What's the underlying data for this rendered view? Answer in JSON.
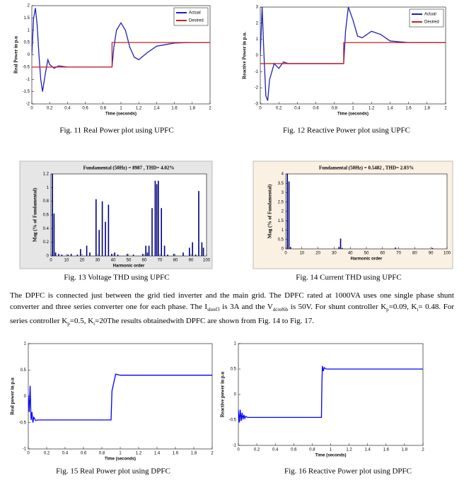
{
  "chart_data": [
    {
      "type": "line",
      "caption": "Fig. 11 Real Power plot using UPFC",
      "xlabel": "Time (seconds)",
      "ylabel": "Real Power in p.u",
      "xlim": [
        0,
        2
      ],
      "xticks": [
        0,
        0.2,
        0.4,
        0.6,
        0.8,
        1,
        1.2,
        1.4,
        1.6,
        1.8,
        2
      ],
      "ylim": [
        -2,
        2
      ],
      "yticks": [
        -2,
        -1.5,
        -1,
        -0.5,
        0,
        0.5,
        1,
        1.5,
        2
      ],
      "legend": "upper right",
      "series": [
        {
          "name": "Actual",
          "color": "#1f1fb4",
          "x": [
            0,
            0.02,
            0.04,
            0.06,
            0.08,
            0.1,
            0.12,
            0.15,
            0.18,
            0.2,
            0.25,
            0.3,
            0.4,
            0.5,
            0.6,
            0.7,
            0.8,
            0.9,
            0.92,
            0.95,
            1.0,
            1.05,
            1.1,
            1.15,
            1.2,
            1.3,
            1.4,
            1.6,
            1.8,
            2
          ],
          "values": [
            0,
            1.5,
            1.9,
            1.2,
            0,
            -1.0,
            -1.5,
            -0.8,
            -0.2,
            -0.4,
            -0.55,
            -0.45,
            -0.5,
            -0.5,
            -0.5,
            -0.5,
            -0.5,
            -0.5,
            0.3,
            1.0,
            1.3,
            1.0,
            0.3,
            -0.1,
            -0.2,
            0.1,
            0.35,
            0.48,
            0.5,
            0.5
          ]
        },
        {
          "name": "Desired",
          "color": "#cc2020",
          "x": [
            0,
            0.9,
            0.9,
            2
          ],
          "values": [
            -0.5,
            -0.5,
            0.5,
            0.5
          ]
        }
      ]
    },
    {
      "type": "line",
      "caption": "Fig. 12 Reactive Power plot using UPFC",
      "xlabel": "Time (seconds)",
      "ylabel": "Reactive Power in p.u.",
      "xlim": [
        0,
        2
      ],
      "xticks": [
        0,
        0.2,
        0.4,
        0.6,
        0.8,
        1,
        1.2,
        1.4,
        1.6,
        1.8,
        2
      ],
      "ylim": [
        -3,
        3
      ],
      "yticks": [
        -3,
        -2,
        -1,
        0,
        1,
        2,
        3
      ],
      "legend": "upper right",
      "series": [
        {
          "name": "Actual",
          "color": "#1f1fb4",
          "x": [
            0,
            0.02,
            0.04,
            0.06,
            0.08,
            0.1,
            0.15,
            0.2,
            0.25,
            0.3,
            0.4,
            0.6,
            0.8,
            0.9,
            0.92,
            0.95,
            1.0,
            1.05,
            1.1,
            1.2,
            1.3,
            1.4,
            1.6,
            1.8,
            2
          ],
          "values": [
            0,
            3,
            0,
            -2.5,
            -2.8,
            -1.5,
            -0.5,
            -0.8,
            -0.4,
            -0.5,
            -0.5,
            -0.5,
            -0.5,
            -0.5,
            1.5,
            3,
            2.2,
            1.2,
            1.1,
            1.5,
            1.3,
            0.9,
            0.8,
            0.8,
            0.8
          ]
        },
        {
          "name": "Desired",
          "color": "#cc2020",
          "x": [
            0,
            0.9,
            0.9,
            2
          ],
          "values": [
            -0.5,
            -0.5,
            0.8,
            0.8
          ]
        }
      ]
    },
    {
      "type": "bar",
      "caption": "Fig. 13 Voltage THD using UPFC",
      "title": "Fundamental (50Hz) = 8987 , THD= 4.02%",
      "xlabel": "Harmonic order",
      "ylabel": "Mag (% of Fundamental)",
      "background": "#e6e6e6",
      "color": "#000080",
      "xlim": [
        0,
        100
      ],
      "xticks": [
        0,
        10,
        20,
        30,
        40,
        50,
        60,
        70,
        80,
        90,
        100
      ],
      "ylim": [
        0,
        1.2
      ],
      "yticks": [
        0,
        0.2,
        0.4,
        0.6,
        0.8,
        1,
        1.2
      ],
      "x": [
        1,
        2,
        3,
        5,
        7,
        11,
        13,
        17,
        19,
        23,
        25,
        29,
        31,
        33,
        35,
        37,
        39,
        41,
        43,
        49,
        53,
        59,
        61,
        62,
        63,
        65,
        67,
        68,
        69,
        71,
        73,
        75,
        79,
        85,
        89,
        91,
        93,
        95,
        97,
        98
      ],
      "values": [
        1.25,
        0.62,
        0.05,
        0.03,
        0.02,
        0.02,
        0.03,
        0.02,
        0.1,
        0.15,
        0.05,
        0.83,
        0.38,
        0.8,
        0.5,
        0.75,
        0.03,
        0.05,
        0.02,
        0.03,
        0.02,
        0.03,
        0.15,
        0.05,
        0.15,
        0.7,
        1.1,
        1.05,
        1.1,
        0.7,
        0.15,
        0.02,
        0.03,
        0.05,
        0.12,
        0.2,
        0.02,
        0.95,
        0.2,
        0.12
      ]
    },
    {
      "type": "bar",
      "caption": "Fig. 14 Current THD using UPFC",
      "title": "Fundamental (50Hz) = 0.5482 , THD= 2.03%",
      "xlabel": "Harmonic order",
      "ylabel": "Mag (% of Fundamental)",
      "background": "#fbf1e3",
      "color": "#000080",
      "xlim": [
        0,
        100
      ],
      "xticks": [
        0,
        10,
        20,
        30,
        40,
        50,
        60,
        70,
        80,
        90,
        100
      ],
      "ylim": [
        0,
        4
      ],
      "yticks": [
        0,
        0.5,
        1,
        1.5,
        2,
        2.5,
        3,
        3.5,
        4
      ],
      "x": [
        1,
        2,
        3,
        33,
        34,
        35,
        68,
        91
      ],
      "values": [
        4.2,
        3.6,
        0.1,
        0.1,
        0.55,
        0.05,
        0.07,
        0.05
      ]
    },
    {
      "type": "line",
      "caption": "Fig. 15 Real Power plot using DPFC",
      "xlabel": "Time (seconds)",
      "ylabel": "Real power in p.u",
      "xlim": [
        0,
        2
      ],
      "xticks": [
        0,
        0.2,
        0.4,
        0.6,
        0.8,
        1,
        1.2,
        1.4,
        1.6,
        1.8,
        2
      ],
      "ylim": [
        -1,
        1
      ],
      "yticks": [
        -1,
        -0.5,
        0,
        0.5,
        1
      ],
      "series": [
        {
          "name": "Real power",
          "color": "#0000ff",
          "x": [
            0,
            0.01,
            0.02,
            0.03,
            0.04,
            0.05,
            0.06,
            0.08,
            0.1,
            0.3,
            0.6,
            0.9,
            0.91,
            0.95,
            1.0,
            1.5,
            2
          ],
          "values": [
            0.02,
            -0.3,
            0.2,
            -0.45,
            -0.3,
            -0.5,
            -0.4,
            -0.46,
            -0.45,
            -0.45,
            -0.45,
            -0.45,
            0.1,
            0.42,
            0.4,
            0.4,
            0.4
          ]
        }
      ]
    },
    {
      "type": "line",
      "caption": "Fig. 16 Reactive Power plot using DPFC",
      "xlabel": "Time (seconds)",
      "ylabel": "Reactive power in p.u",
      "xlim": [
        0,
        2
      ],
      "xticks": [
        0,
        0.2,
        0.4,
        0.6,
        0.8,
        1,
        1.2,
        1.4,
        1.6,
        1.8,
        2
      ],
      "ylim": [
        -1,
        1
      ],
      "yticks": [
        -1,
        -0.5,
        0,
        0.5,
        1
      ],
      "series": [
        {
          "name": "Reactive power",
          "color": "#0000ff",
          "x": [
            0,
            0.01,
            0.02,
            0.03,
            0.04,
            0.05,
            0.06,
            0.07,
            0.08,
            0.1,
            0.3,
            0.6,
            0.9,
            0.905,
            0.91,
            0.92,
            0.93,
            0.95,
            1.0,
            1.5,
            2
          ],
          "values": [
            -0.3,
            -0.55,
            -0.3,
            -0.52,
            -0.36,
            -0.49,
            -0.4,
            -0.47,
            -0.43,
            -0.45,
            -0.45,
            -0.45,
            -0.45,
            0.2,
            0.56,
            0.46,
            0.53,
            0.5,
            0.5,
            0.5,
            0.5
          ]
        }
      ]
    }
  ],
  "paragraph": [
    "The DPFC is connected just between the grid tied inverter and the main grid. The DPFC rated at 1000VA uses one single phase shunt converter and three series converter one for each phase. The I",
    "shref3",
    " is 3A and the V",
    "dcref6h",
    " is 50V. For shunt controller K",
    "p",
    "=0.09, K",
    "i",
    "= 0.48. For series controller K",
    "p",
    "=0.5, K",
    "i",
    "=20The results obtainedwith DPFC are shown from Fig. 14 to Fig. 17."
  ]
}
